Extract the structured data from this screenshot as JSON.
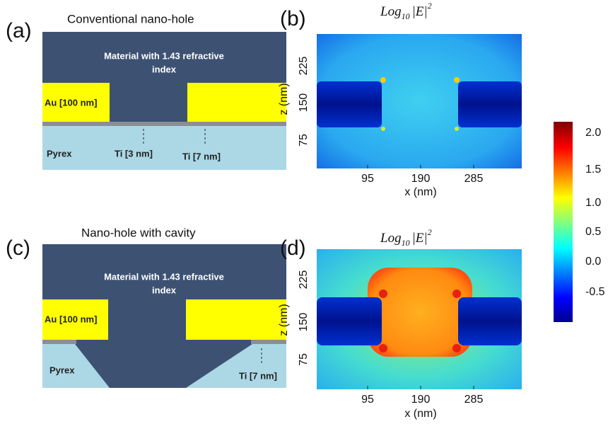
{
  "panels": [
    {
      "label": "(a)",
      "title": "Conventional nano-hole",
      "material": "Material with 1.43 refractive",
      "material_line2": "index",
      "au": "Au [100 nm]",
      "substrate": "Pyrex",
      "ti_labels": [
        "Ti [3 nm]",
        "Ti [7 nm]"
      ]
    },
    {
      "label": "(b)",
      "title": {
        "base": "Log",
        "sub": "10",
        "abs": "|E|",
        "sup": "2"
      },
      "x_label": "x (nm)",
      "y_label": "z (nm)",
      "xticks": [
        "95",
        "190",
        "285"
      ],
      "yticks": [
        "225",
        "150",
        "75"
      ]
    },
    {
      "label": "(c)",
      "title": "Nano-hole with cavity",
      "material": "Material with 1.43 refractive",
      "material_line2": "index",
      "au": "Au [100 nm]",
      "substrate": "Pyrex",
      "ti_labels": [
        "Ti [7 nm]"
      ]
    },
    {
      "label": "(d)",
      "title": {
        "base": "Log",
        "sub": "10",
        "abs": "|E|",
        "sup": "2"
      },
      "x_label": "x (nm)",
      "y_label": "z (nm)",
      "xticks": [
        "95",
        "190",
        "285"
      ],
      "yticks": [
        "225",
        "150",
        "75"
      ]
    }
  ],
  "colorbar": {
    "ticks": [
      "2.0",
      "1.5",
      "1.0",
      "0.5",
      "0.0",
      "-0.5"
    ]
  }
}
